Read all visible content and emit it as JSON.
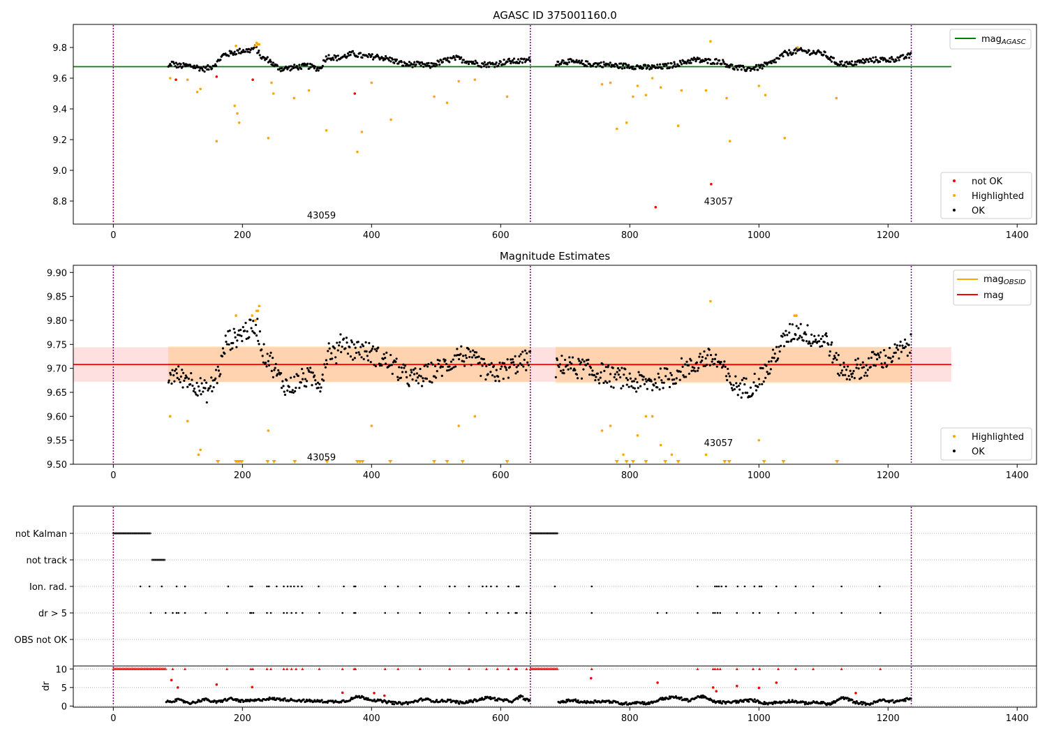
{
  "chart_data": [
    {
      "type": "scatter",
      "title": "AGASC ID 375001160.0",
      "xlabel": "",
      "ylabel": "",
      "xlim": [
        -62,
        1430
      ],
      "ylim": [
        8.65,
        9.95
      ],
      "xticks": [
        0,
        200,
        400,
        600,
        800,
        1000,
        1200,
        1400
      ],
      "yticks": [
        8.8,
        9.0,
        9.2,
        9.4,
        9.6,
        9.8
      ],
      "observation_boundaries": [
        0,
        646,
        1236
      ],
      "observations": [
        {
          "label": "43059",
          "x": 300,
          "y": 8.71
        },
        {
          "label": "43057",
          "x": 915,
          "y": 8.8
        }
      ],
      "reference_line": {
        "name": "mag_AGASC",
        "y": 9.675,
        "x": [
          -62,
          1298
        ],
        "color": "#008000"
      },
      "ok_segments": [
        {
          "name": "OK",
          "color": "#000000",
          "x": [
            85,
            90,
            100,
            110,
            120,
            130,
            140,
            150,
            160,
            170,
            180,
            190,
            200,
            210,
            220,
            230,
            240,
            250,
            260,
            280,
            300,
            320,
            330,
            350,
            370,
            390,
            410,
            430,
            450,
            470,
            490,
            510,
            530,
            550,
            570,
            590,
            610,
            630,
            646
          ],
          "y": [
            9.67,
            9.7,
            9.68,
            9.68,
            9.68,
            9.67,
            9.66,
            9.67,
            9.7,
            9.75,
            9.76,
            9.77,
            9.78,
            9.78,
            9.8,
            9.73,
            9.72,
            9.68,
            9.66,
            9.67,
            9.68,
            9.66,
            9.74,
            9.73,
            9.76,
            9.74,
            9.74,
            9.72,
            9.69,
            9.69,
            9.68,
            9.71,
            9.73,
            9.71,
            9.69,
            9.69,
            9.71,
            9.71,
            9.72
          ]
        },
        {
          "name": "OK",
          "color": "#000000",
          "x": [
            685,
            700,
            720,
            740,
            760,
            780,
            800,
            820,
            840,
            860,
            880,
            900,
            920,
            940,
            960,
            980,
            1000,
            1020,
            1040,
            1060,
            1080,
            1100,
            1120,
            1140,
            1160,
            1180,
            1200,
            1220,
            1236
          ],
          "y": [
            9.7,
            9.71,
            9.7,
            9.69,
            9.69,
            9.68,
            9.68,
            9.67,
            9.67,
            9.68,
            9.7,
            9.72,
            9.71,
            9.71,
            9.67,
            9.66,
            9.67,
            9.7,
            9.76,
            9.78,
            9.77,
            9.76,
            9.7,
            9.69,
            9.71,
            9.72,
            9.72,
            9.73,
            9.75
          ]
        }
      ],
      "highlighted": {
        "name": "Highlighted",
        "color": "#ffa500",
        "x": [
          88,
          115,
          130,
          135,
          160,
          188,
          190,
          192,
          195,
          220,
          222,
          224,
          226,
          240,
          245,
          248,
          280,
          303,
          330,
          378,
          385,
          400,
          430,
          497,
          517,
          535,
          560,
          610,
          757,
          770,
          780,
          795,
          805,
          812,
          825,
          835,
          848,
          875,
          880,
          918,
          925,
          950,
          955,
          1000,
          1010,
          1040,
          1060,
          1120
        ],
        "y": [
          9.6,
          9.59,
          9.51,
          9.53,
          9.19,
          9.42,
          9.81,
          9.37,
          9.31,
          9.81,
          9.83,
          9.82,
          9.82,
          9.21,
          9.57,
          9.5,
          9.47,
          9.52,
          9.26,
          9.12,
          9.25,
          9.57,
          9.33,
          9.48,
          9.44,
          9.58,
          9.59,
          9.48,
          9.56,
          9.57,
          9.27,
          9.31,
          9.48,
          9.55,
          9.49,
          9.6,
          9.54,
          9.29,
          9.52,
          9.52,
          9.84,
          9.47,
          9.19,
          9.55,
          9.49,
          9.21,
          9.8,
          9.47
        ]
      },
      "not_ok": {
        "name": "not OK",
        "color": "#ff0000",
        "x": [
          97,
          160,
          216,
          374,
          840,
          926
        ],
        "y": [
          9.59,
          9.61,
          9.59,
          9.5,
          8.76,
          8.91
        ]
      },
      "legend_upper": [
        {
          "label": "mag",
          "sub": "AGASC"
        }
      ],
      "legend_lower": [
        "not OK",
        "Highlighted",
        "OK"
      ],
      "legend_upper_placement": "top-right",
      "legend_lower_placement": "bottom-right"
    },
    {
      "type": "scatter",
      "title": "Magnitude Estimates",
      "xlabel": "",
      "ylabel": "",
      "xlim": [
        -62,
        1430
      ],
      "ylim": [
        9.5,
        9.915
      ],
      "xticks": [
        0,
        200,
        400,
        600,
        800,
        1000,
        1200,
        1400
      ],
      "yticks": [
        9.5,
        9.55,
        9.6,
        9.65,
        9.7,
        9.75,
        9.8,
        9.85,
        9.9
      ],
      "observation_boundaries": [
        0,
        646,
        1236
      ],
      "observations": [
        {
          "label": "43059",
          "x": 300,
          "y": 9.515
        },
        {
          "label": "43057",
          "x": 915,
          "y": 9.545
        }
      ],
      "mag_line": {
        "name": "mag",
        "y": 9.708,
        "band": [
          9.672,
          9.744
        ],
        "x": [
          -62,
          1298
        ],
        "color": "#ff0000"
      },
      "obsid_lines": [
        {
          "name": "mag_OBSID",
          "x": [
            85,
            646
          ],
          "y": 9.708,
          "band": [
            9.671,
            9.746
          ],
          "color": "#ffa500"
        },
        {
          "name": "mag_OBSID",
          "x": [
            685,
            1236
          ],
          "y": 9.707,
          "band": [
            9.669,
            9.745
          ],
          "color": "#ffa500"
        }
      ],
      "ok_segments": [
        {
          "name": "OK",
          "color": "#000000",
          "x": [
            85,
            95,
            105,
            115,
            125,
            135,
            145,
            155,
            165,
            175,
            185,
            195,
            205,
            215,
            222,
            232,
            242,
            252,
            262,
            272,
            282,
            295,
            310,
            322,
            332,
            345,
            355,
            370,
            385,
            400,
            415,
            430,
            445,
            460,
            475,
            490,
            505,
            520,
            535,
            550,
            565,
            580,
            595,
            610,
            625,
            646
          ],
          "y": [
            9.68,
            9.69,
            9.68,
            9.68,
            9.67,
            9.66,
            9.65,
            9.67,
            9.7,
            9.76,
            9.76,
            9.77,
            9.78,
            9.78,
            9.79,
            9.73,
            9.72,
            9.69,
            9.67,
            9.66,
            9.67,
            9.68,
            9.68,
            9.67,
            9.74,
            9.73,
            9.76,
            9.74,
            9.74,
            9.73,
            9.72,
            9.71,
            9.69,
            9.68,
            9.68,
            9.69,
            9.7,
            9.71,
            9.73,
            9.72,
            9.71,
            9.69,
            9.69,
            9.7,
            9.71,
            9.72
          ]
        },
        {
          "name": "OK",
          "color": "#000000",
          "x": [
            685,
            700,
            715,
            730,
            745,
            760,
            775,
            790,
            805,
            820,
            835,
            850,
            865,
            880,
            895,
            910,
            925,
            940,
            955,
            970,
            985,
            1000,
            1015,
            1030,
            1045,
            1060,
            1075,
            1090,
            1105,
            1120,
            1135,
            1150,
            1165,
            1180,
            1195,
            1210,
            1225,
            1236
          ],
          "y": [
            9.7,
            9.71,
            9.7,
            9.7,
            9.69,
            9.69,
            9.68,
            9.68,
            9.67,
            9.67,
            9.67,
            9.68,
            9.68,
            9.7,
            9.7,
            9.72,
            9.72,
            9.71,
            9.67,
            9.66,
            9.66,
            9.68,
            9.7,
            9.74,
            9.77,
            9.78,
            9.77,
            9.76,
            9.76,
            9.71,
            9.69,
            9.7,
            9.7,
            9.72,
            9.72,
            9.73,
            9.74,
            9.75
          ]
        }
      ],
      "highlighted": {
        "name": "Highlighted",
        "color": "#ffa500",
        "x": [
          88,
          115,
          132,
          135,
          190,
          215,
          220,
          222,
          224,
          226,
          240,
          400,
          535,
          560,
          757,
          770,
          790,
          812,
          825,
          835,
          848,
          865,
          918,
          925,
          1000,
          1055,
          1058
        ],
        "y": [
          9.6,
          9.59,
          9.52,
          9.53,
          9.81,
          9.81,
          9.8,
          9.82,
          9.82,
          9.83,
          9.57,
          9.58,
          9.58,
          9.6,
          9.57,
          9.58,
          9.52,
          9.56,
          9.6,
          9.6,
          9.54,
          9.52,
          9.52,
          9.84,
          9.55,
          9.81,
          9.81
        ]
      },
      "below_range": {
        "name": "Highlighted",
        "color": "#ffa500",
        "x": [
          162,
          190,
          193,
          196,
          199,
          239,
          249,
          281,
          331,
          378,
          382,
          386,
          429,
          497,
          517,
          541,
          610,
          780,
          795,
          805,
          825,
          855,
          875,
          947,
          954,
          1008,
          1038,
          1121
        ]
      },
      "legend_upper": [
        {
          "label": "mag",
          "sub": "OBSID"
        },
        {
          "label": "mag",
          "sub": ""
        }
      ],
      "legend_lower": [
        "Highlighted",
        "OK"
      ],
      "legend_upper_placement": "top-right",
      "legend_lower_placement": "bottom-right"
    },
    {
      "type": "scatter",
      "title": "",
      "xlabel": "",
      "ylabel": "",
      "xlim": [
        -62,
        1430
      ],
      "categories": [
        "not Kalman",
        "not track",
        "Ion. rad.",
        "dr > 5",
        "OBS not OK"
      ],
      "observation_boundaries": [
        0,
        646,
        1236
      ],
      "flags": [
        {
          "category": "not Kalman",
          "segments": [
            [
              0,
              58
            ],
            [
              646,
              689
            ]
          ]
        },
        {
          "category": "not track",
          "segments": [
            [
              60,
              81
            ]
          ]
        },
        {
          "category": "Ion. rad.",
          "x": [
            42,
            56,
            75,
            98,
            111,
            178,
            212,
            215,
            238,
            241,
            253,
            264,
            270,
            275,
            280,
            286,
            292,
            318,
            357,
            373,
            375,
            421,
            441,
            475,
            521,
            529,
            551,
            572,
            578,
            585,
            594,
            612,
            625,
            628,
            684,
            741,
            905,
            932,
            935,
            938,
            942,
            949,
            967,
            978,
            993,
            1001,
            1004,
            1027,
            1057,
            1084,
            1128,
            1187
          ]
        },
        {
          "category": "dr > 5",
          "x": [
            58,
            81,
            92,
            98,
            101,
            111,
            143,
            176,
            212,
            214,
            217,
            238,
            244,
            264,
            269,
            276,
            283,
            293,
            319,
            355,
            373,
            375,
            421,
            441,
            475,
            521,
            551,
            578,
            595,
            612,
            623,
            625,
            640,
            646,
            741,
            843,
            857,
            905,
            929,
            932,
            936,
            940,
            966,
            991,
            1001,
            1030,
            1057,
            1084,
            1128,
            1188
          ]
        }
      ]
    },
    {
      "type": "scatter",
      "title": "",
      "xlabel": "",
      "ylabel": "dr",
      "xlim": [
        -62,
        1430
      ],
      "ylim": [
        -0.3,
        10.8
      ],
      "yticks": [
        0,
        5,
        10
      ],
      "observation_boundaries": [
        0,
        646,
        1236
      ],
      "capped_red": {
        "color": "#ff0000",
        "y": 10,
        "segments": [
          [
            0,
            82
          ],
          [
            646,
            689
          ]
        ],
        "x": [
          92,
          111,
          176,
          213,
          216,
          238,
          244,
          264,
          269,
          276,
          283,
          293,
          319,
          355,
          373,
          375,
          421,
          441,
          475,
          521,
          551,
          578,
          595,
          612,
          623,
          625,
          640,
          741,
          905,
          929,
          932,
          936,
          940,
          966,
          991,
          1001,
          1030,
          1057,
          1084,
          1128,
          1188
        ]
      },
      "red_points": {
        "color": "#ff0000",
        "x": [
          90,
          100,
          160,
          215,
          355,
          404,
          420,
          740,
          843,
          929,
          934,
          966,
          1000,
          1027,
          1150
        ],
        "y": [
          7,
          5,
          5.8,
          5.1,
          3.6,
          3.5,
          2.8,
          7.5,
          6.3,
          5,
          4,
          5.4,
          4.9,
          6.3,
          3.5
        ]
      },
      "ok_segments": [
        {
          "color": "#000000",
          "x": [
            82,
            100,
            120,
            140,
            160,
            180,
            200,
            220,
            240,
            260,
            280,
            300,
            320,
            340,
            360,
            380,
            400,
            420,
            440,
            460,
            480,
            500,
            520,
            540,
            560,
            580,
            600,
            620,
            630,
            646
          ],
          "y": [
            1.2,
            1.6,
            0.8,
            1.8,
            1.0,
            2.0,
            1.3,
            1.5,
            2.0,
            1.8,
            1.6,
            1.4,
            1.3,
            1.2,
            1.4,
            2.6,
            1.7,
            1.2,
            0.7,
            0.9,
            1.9,
            1.3,
            1.5,
            0.8,
            1.5,
            2.3,
            1.6,
            1.3,
            2.6,
            1.2
          ]
        },
        {
          "color": "#000000",
          "x": [
            689,
            710,
            730,
            750,
            770,
            790,
            810,
            830,
            850,
            870,
            890,
            910,
            930,
            950,
            970,
            990,
            1010,
            1030,
            1050,
            1070,
            1090,
            1110,
            1130,
            1150,
            1170,
            1190,
            1210,
            1236
          ],
          "y": [
            1.0,
            1.6,
            1.0,
            1.3,
            1.2,
            0.6,
            1.0,
            0.7,
            2.0,
            2.4,
            1.5,
            2.7,
            1.2,
            0.9,
            1.3,
            1.6,
            0.7,
            1.0,
            1.4,
            0.8,
            1.0,
            0.5,
            2.3,
            1.0,
            0.5,
            1.6,
            1.2,
            2.0
          ]
        }
      ]
    }
  ]
}
